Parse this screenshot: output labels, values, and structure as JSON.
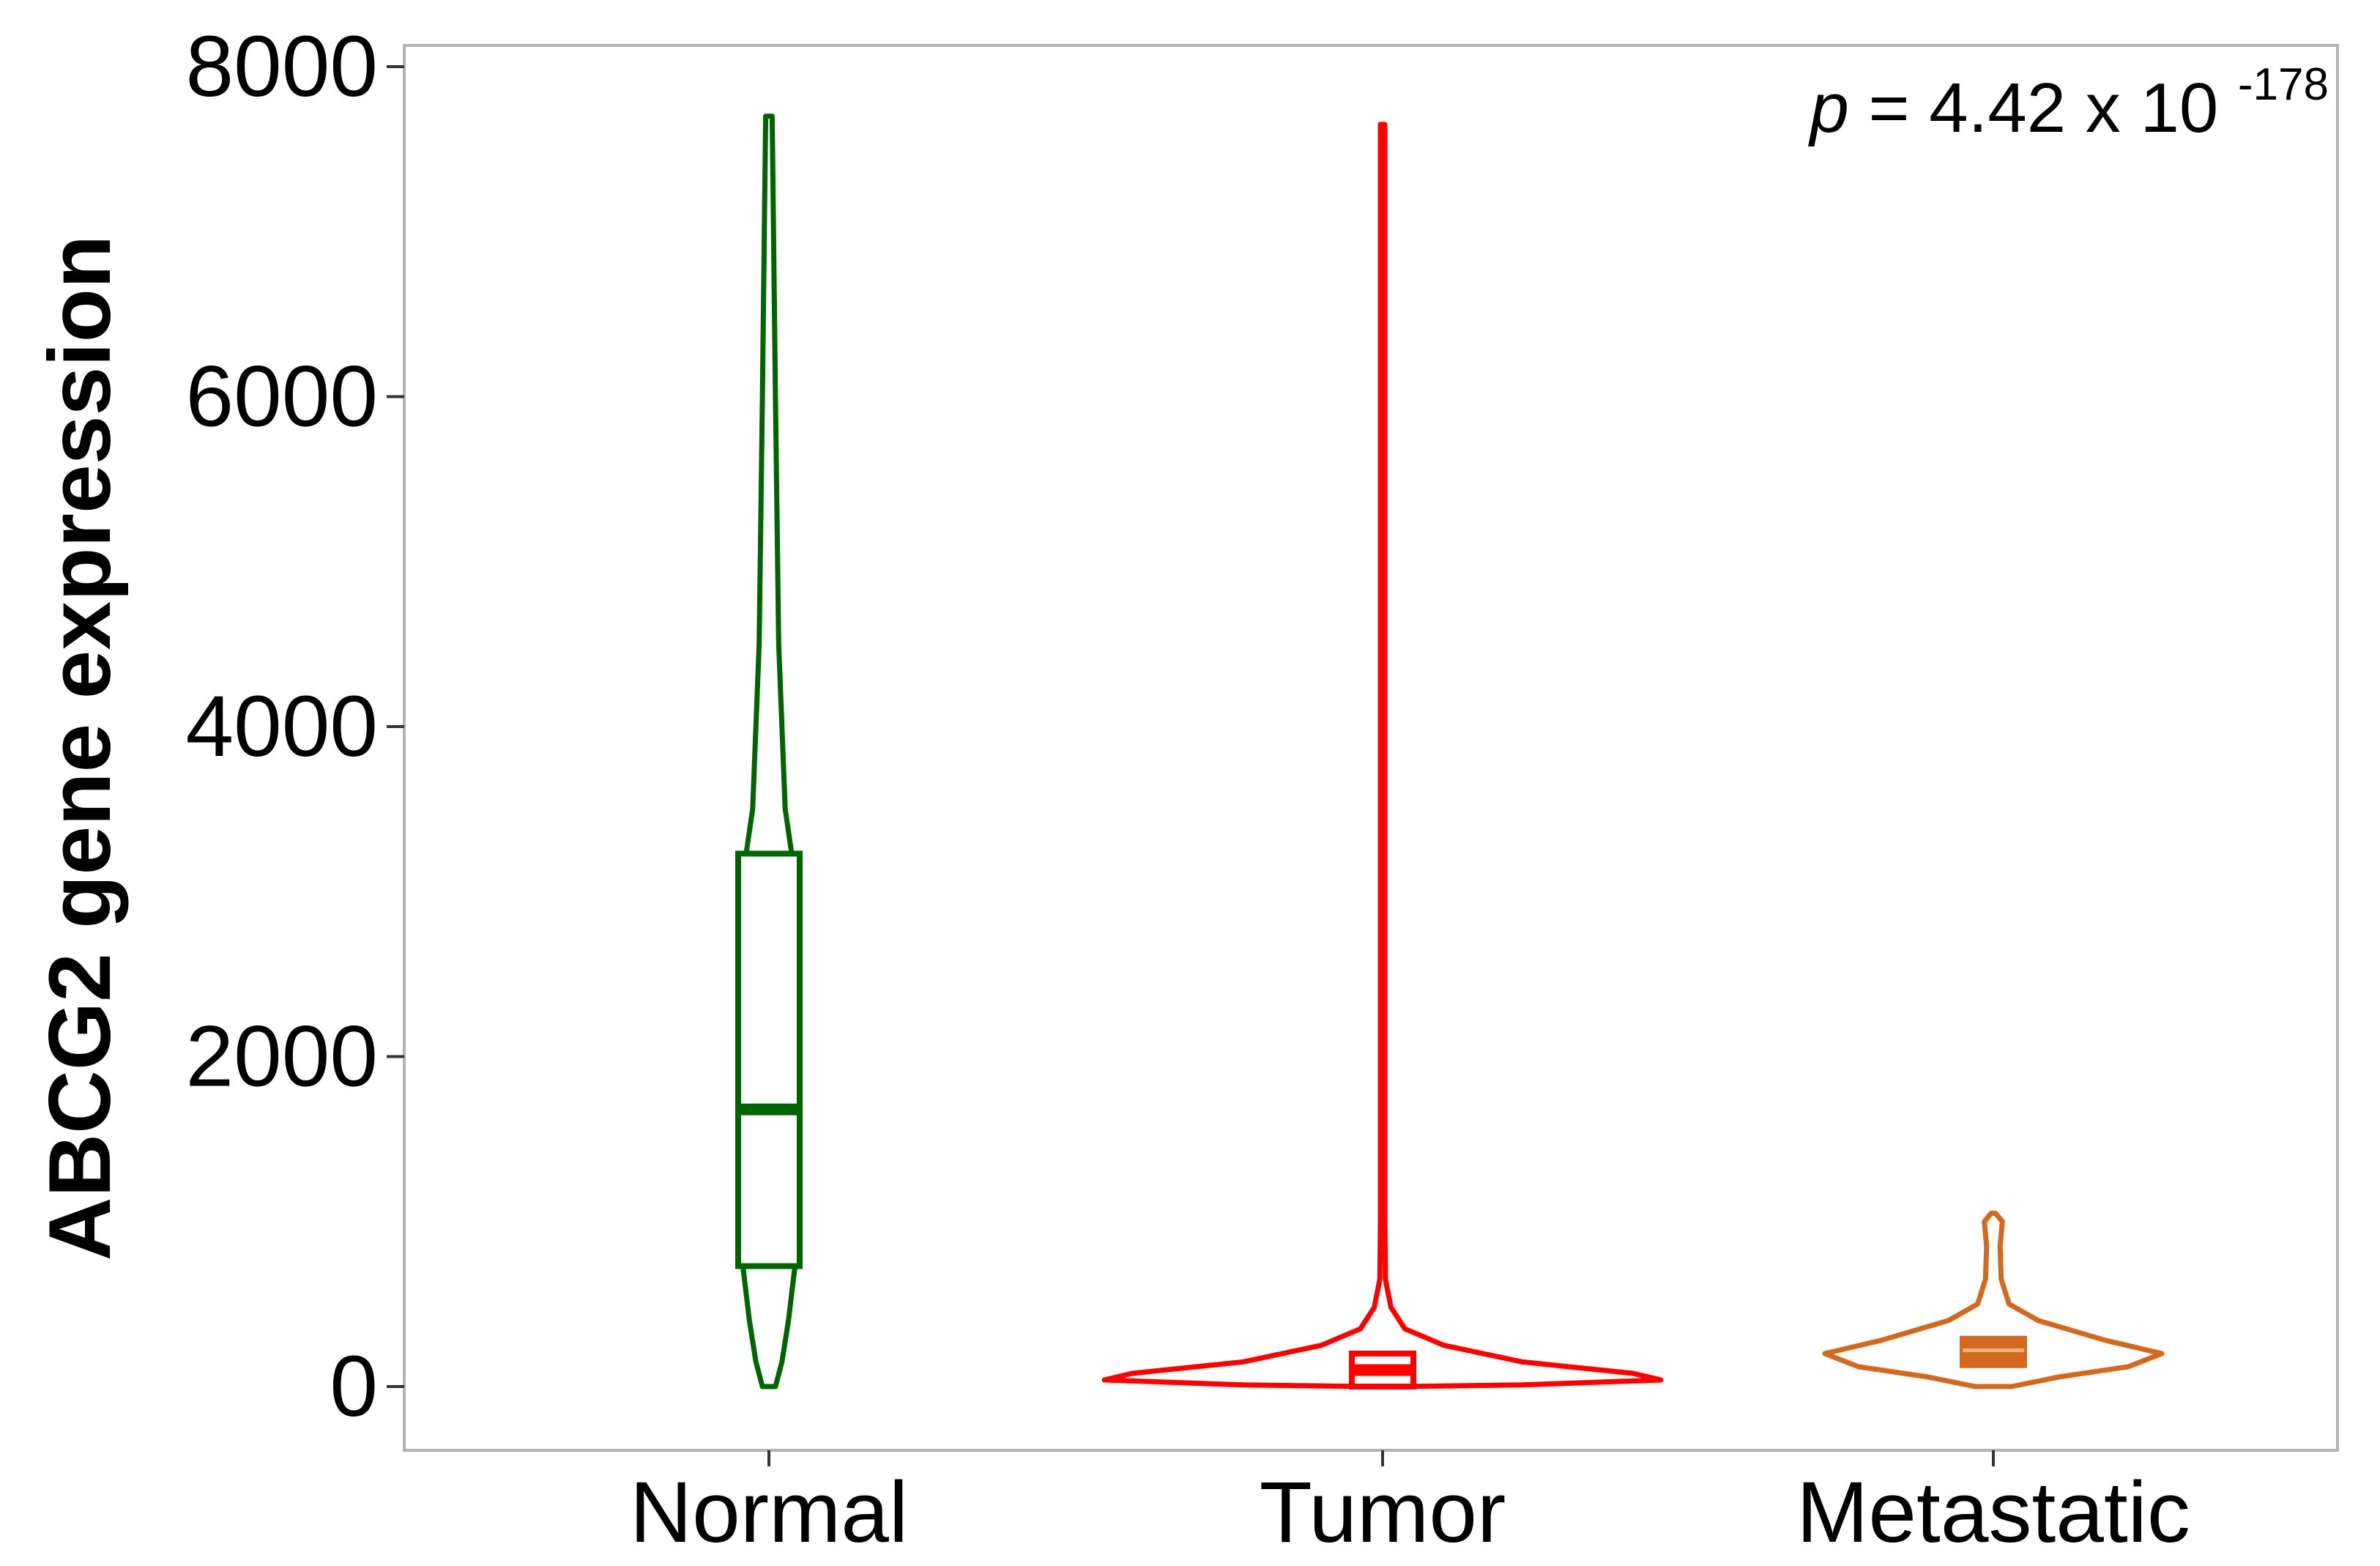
{
  "chart_data": {
    "type": "violin",
    "title": "",
    "xlabel": "",
    "ylabel": "ABCG2 gene expression",
    "ylim": [
      -350,
      8200
    ],
    "yticks": [
      0,
      2000,
      4000,
      6000,
      8000
    ],
    "ytick_labels": [
      "0",
      "2000",
      "4000",
      "6000",
      "8000"
    ],
    "grid": false,
    "annotation": {
      "prefix": "p",
      "text": " = 4.42 x 10",
      "exponent": "-178"
    },
    "groups": [
      {
        "name": "Normal",
        "color": "#006400",
        "box": {
          "q1": 730,
          "median": 1680,
          "q3": 3230
        },
        "profile": [
          [
            0,
            0.02
          ],
          [
            150,
            0.04
          ],
          [
            400,
            0.06
          ],
          [
            730,
            0.08
          ],
          [
            1680,
            0.09
          ],
          [
            3230,
            0.07
          ],
          [
            3500,
            0.05
          ],
          [
            4500,
            0.03
          ],
          [
            6000,
            0.02
          ],
          [
            7700,
            0.01
          ]
        ]
      },
      {
        "name": "Tumor",
        "color": "#ff0000",
        "box": {
          "q1": 0,
          "median": 100,
          "q3": 200
        },
        "profile": [
          [
            0,
            0.05
          ],
          [
            10,
            0.5
          ],
          [
            40,
            1.0
          ],
          [
            80,
            0.9
          ],
          [
            150,
            0.5
          ],
          [
            250,
            0.22
          ],
          [
            350,
            0.08
          ],
          [
            480,
            0.03
          ],
          [
            650,
            0.01
          ],
          [
            1000,
            0.005
          ],
          [
            7650,
            0.005
          ]
        ]
      },
      {
        "name": "Metastatic",
        "color": "#d2691e",
        "box": {
          "q1": 130,
          "median": 220,
          "q3": 290
        },
        "profile": [
          [
            0,
            0.08
          ],
          [
            60,
            0.3
          ],
          [
            120,
            0.6
          ],
          [
            200,
            0.75
          ],
          [
            280,
            0.5
          ],
          [
            400,
            0.2
          ],
          [
            500,
            0.07
          ],
          [
            650,
            0.035
          ],
          [
            850,
            0.03
          ],
          [
            1000,
            0.04
          ],
          [
            1050,
            0.01
          ]
        ]
      }
    ]
  }
}
